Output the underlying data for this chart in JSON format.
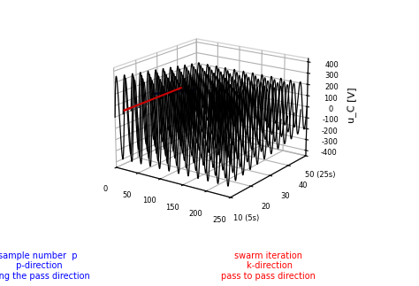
{
  "title": "",
  "zlabel": "u_C [V]",
  "xlabel_p": "sample number  p\n p-direction\nalong the pass direction",
  "xlabel_k": "swarm iteration\n k-direction\npass to pass direction",
  "zlim": [
    -450,
    430
  ],
  "p_max": 250,
  "k_max": 50,
  "p_ticks": [
    0,
    50,
    100,
    150,
    200,
    250
  ],
  "k_ticks": [
    10,
    20,
    30,
    40,
    50
  ],
  "k_ticklabels": [
    "10 (5s)",
    "20",
    "30",
    "40",
    "50 (25s)"
  ],
  "z_ticks": [
    -400,
    -300,
    -200,
    -100,
    0,
    100,
    200,
    300,
    400
  ],
  "background_color": "#ffffff",
  "waveform_color": "#000000",
  "arrow_red_color": "#cc0000",
  "arrow_blue_color": "#0000cc",
  "num_passes_plotted": 12,
  "num_cycles_per_pass": 12,
  "amp_at_k1": 210,
  "amp_at_kmax": 360,
  "elev": 18,
  "azim": -55
}
